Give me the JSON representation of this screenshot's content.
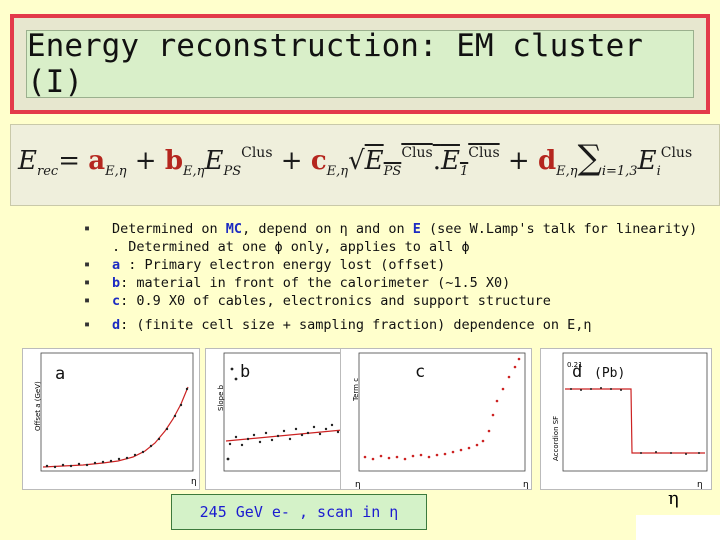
{
  "title": "Energy reconstruction: EM cluster (I)",
  "formula": {
    "lhs": "E",
    "lhs_sub": "rec",
    "a": "a",
    "a_sub": "E,η",
    "b": "b",
    "b_sub": "E,η",
    "E_ps": "E",
    "ps_sub": "PS",
    "clus": "Clus",
    "c": "c",
    "c_sub": "E,η",
    "E1": "E",
    "one_sub": "1",
    "d": "d",
    "d_sub": "E,η",
    "sum_sub": "i=1,3",
    "Ei": "E",
    "i_sub": "i"
  },
  "bullets": {
    "b1_pre": "Determined on  ",
    "b1_mc": "MC",
    "b1_mid": ", depend on η and on ",
    "b1_e": "E",
    "b1_post": " (see W.Lamp's talk for linearity) . Determined at one ϕ only, applies to all ϕ",
    "b2_key": "a",
    "b2_text": " : Primary electron energy lost (offset)",
    "b3_key": "b",
    "b3_text": ": material in front of the calorimeter (~1.5 X0)",
    "b4_key": "c",
    "b4_text": ": 0.9 X0 of cables, electronics and support structure",
    "b5_key": "d",
    "b5_text": ": (finite cell size + sampling fraction) dependence on E,η"
  },
  "panels": {
    "a_label": "a",
    "b_label": "b",
    "c_label": "c",
    "d_label": "d",
    "d_extra": "(Pb)",
    "a_ylabel": "Offset a (GeV)",
    "b_ylabel": "Slope b",
    "c_ylabel": "Term c",
    "d_ylabel": "Accordion SF",
    "eta": "η",
    "d_tick1": "0.21"
  },
  "caption": "245 GeV e- , scan in η",
  "corner_eta": "η"
}
